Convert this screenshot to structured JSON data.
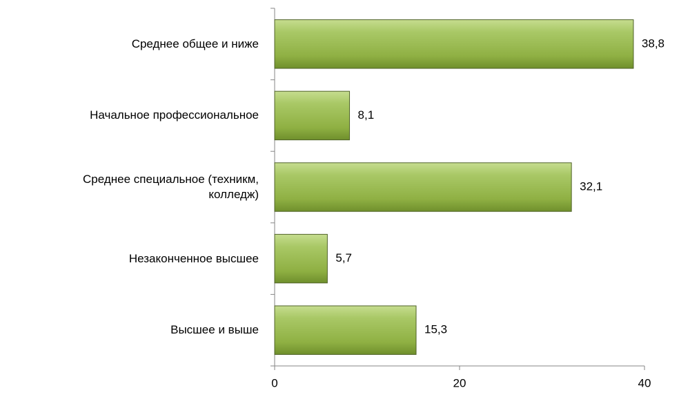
{
  "chart_data": {
    "type": "bar",
    "orientation": "horizontal",
    "categories": [
      "Среднее общее и ниже",
      "Начальное профессиональное",
      "Среднее специальное (техникм, колледж)",
      "Незаконченное высшее",
      "Высшее и выше"
    ],
    "values": [
      38.8,
      8.1,
      32.1,
      5.7,
      15.3
    ],
    "value_labels": [
      "38,8",
      "8,1",
      "32,1",
      "5,7",
      "15,3"
    ],
    "color": "#9bbb59",
    "xlim": [
      0,
      40
    ],
    "xticks": [
      0,
      20,
      40
    ],
    "grid": false
  }
}
